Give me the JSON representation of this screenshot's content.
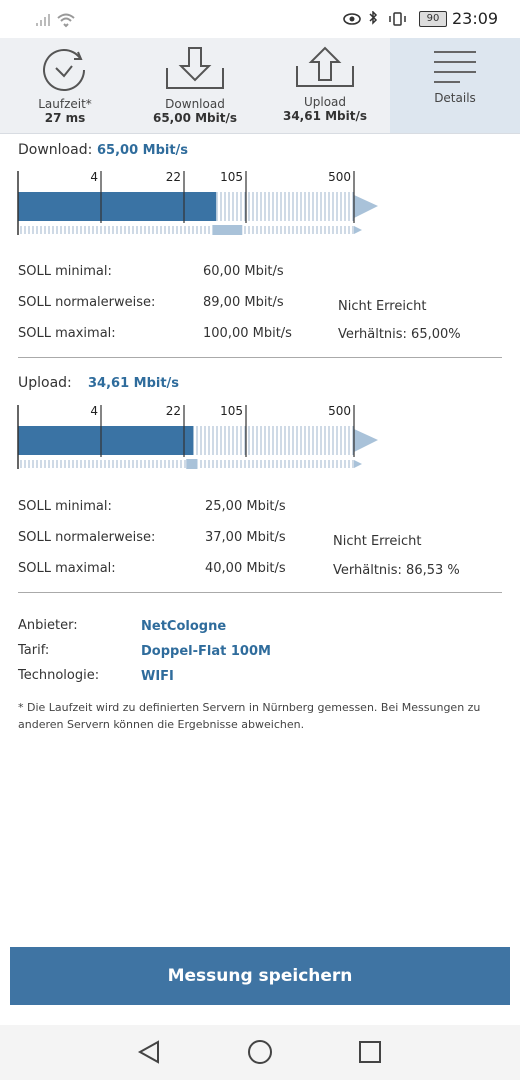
{
  "status_bar": {
    "battery": "90",
    "time": "23:09"
  },
  "tabs": [
    {
      "label": "Laufzeit*",
      "value": "27 ms"
    },
    {
      "label": "Download",
      "value": "65,00 Mbit/s"
    },
    {
      "label": "Upload",
      "value": "34,61 Mbit/s"
    },
    {
      "label": "Details"
    }
  ],
  "sections": [
    {
      "title": "Download:",
      "speed": "65,00 Mbit/s",
      "gauge": {
        "ticks": [
          4,
          22,
          105,
          500
        ],
        "value": 65,
        "min": 60,
        "max": 100
      },
      "rows": [
        {
          "label": "SOLL minimal:",
          "value": "60,00 Mbit/s"
        },
        {
          "label": "SOLL normalerweise:",
          "value": "89,00 Mbit/s"
        },
        {
          "label": "SOLL maximal:",
          "value": "100,00 Mbit/s"
        }
      ],
      "status": "Nicht Erreicht",
      "ratio": "Verhältnis: 65,00%"
    },
    {
      "title": "Upload:",
      "speed": "34,61 Mbit/s",
      "gauge": {
        "ticks": [
          4,
          22,
          105,
          500
        ],
        "value": 34.61,
        "min": 25,
        "max": 40
      },
      "rows": [
        {
          "label": "SOLL minimal:",
          "value": "25,00 Mbit/s"
        },
        {
          "label": "SOLL normalerweise:",
          "value": "37,00 Mbit/s"
        },
        {
          "label": "SOLL maximal:",
          "value": "40,00 Mbit/s"
        }
      ],
      "status": "Nicht Erreicht",
      "ratio": "Verhältnis: 86,53 %"
    }
  ],
  "info": [
    {
      "label": "Anbieter:",
      "value": "NetCologne"
    },
    {
      "label": "Tarif:",
      "value": "Doppel-Flat 100M"
    },
    {
      "label": "Technologie:",
      "value": "WIFI"
    }
  ],
  "footnote": "* Die Laufzeit wird zu definierten Servern in Nürnberg gemessen. Bei Messungen zu anderen Servern können die Ergebnisse abweichen.",
  "button": "Messung speichern"
}
